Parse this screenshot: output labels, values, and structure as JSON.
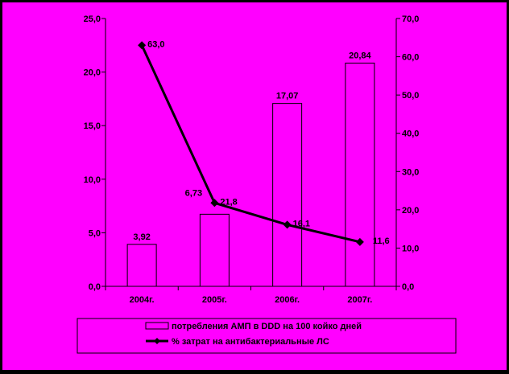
{
  "chart_data": {
    "type": "bar",
    "categories": [
      "2004г.",
      "2005г.",
      "2006г.",
      "2007г."
    ],
    "series": [
      {
        "name": "потребления АМП в DDD на 100 койко дней",
        "kind": "bar",
        "axis": "left",
        "values": [
          3.92,
          6.73,
          17.07,
          20.84
        ],
        "labels": [
          "3,92",
          "6,73",
          "17,07",
          "20,84"
        ]
      },
      {
        "name": "% затрат на антибактериальные ЛС",
        "kind": "line",
        "axis": "right",
        "values": [
          63.0,
          21.8,
          16.1,
          11.6
        ],
        "labels": [
          "63,0",
          "21,8",
          "16,1",
          "11,6"
        ]
      }
    ],
    "y_left": {
      "min": 0,
      "max": 25,
      "ticks": [
        "0,0",
        "5,0",
        "10,0",
        "15,0",
        "20,0",
        "25,0"
      ]
    },
    "y_right": {
      "min": 0,
      "max": 70,
      "ticks": [
        "0,0",
        "10,0",
        "20,0",
        "30,0",
        "40,0",
        "50,0",
        "60,0",
        "70,0"
      ]
    },
    "legend_position": "bottom",
    "grid": false,
    "colors": {
      "background": "#FF00FF",
      "border": "#000000",
      "bar_fill": "#FF00FF",
      "bar_stroke": "#000000",
      "line": "#000000"
    }
  }
}
